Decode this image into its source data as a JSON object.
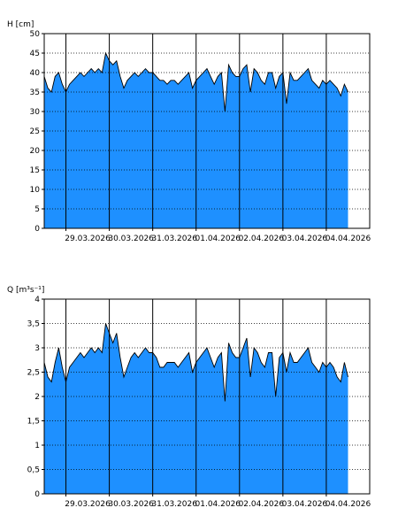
{
  "chart_data": [
    {
      "type": "area",
      "ylabel": "H [cm]",
      "ylim": [
        0,
        50
      ],
      "yticks": [
        0,
        5,
        10,
        15,
        20,
        25,
        30,
        35,
        40,
        45,
        50
      ],
      "xlim": [
        "2026-03-28T12:00",
        "2026-04-05T00:00"
      ],
      "xticks": [
        "2026-03-29",
        "2026-03-30",
        "2026-03-31",
        "2026-04-01",
        "2026-04-02",
        "2026-04-03",
        "2026-04-04"
      ],
      "xtick_labels": [
        "29.03.2026",
        "30.03.2026",
        "31.03.2026",
        "01.04.2026",
        "02.04.2026",
        "03.04.2026",
        "04.04.2026"
      ],
      "grid": true,
      "series_color": "#1e90ff",
      "x": [
        "2026-03-28T12:00",
        "2026-03-28T14:00",
        "2026-03-28T16:00",
        "2026-03-28T18:00",
        "2026-03-28T20:00",
        "2026-03-28T22:00",
        "2026-03-29T00:00",
        "2026-03-29T02:00",
        "2026-03-29T04:00",
        "2026-03-29T06:00",
        "2026-03-29T08:00",
        "2026-03-29T10:00",
        "2026-03-29T12:00",
        "2026-03-29T14:00",
        "2026-03-29T16:00",
        "2026-03-29T18:00",
        "2026-03-29T20:00",
        "2026-03-29T22:00",
        "2026-03-30T00:00",
        "2026-03-30T02:00",
        "2026-03-30T04:00",
        "2026-03-30T06:00",
        "2026-03-30T08:00",
        "2026-03-30T10:00",
        "2026-03-30T12:00",
        "2026-03-30T14:00",
        "2026-03-30T16:00",
        "2026-03-30T18:00",
        "2026-03-30T20:00",
        "2026-03-30T22:00",
        "2026-03-31T00:00",
        "2026-03-31T02:00",
        "2026-03-31T04:00",
        "2026-03-31T06:00",
        "2026-03-31T08:00",
        "2026-03-31T10:00",
        "2026-03-31T12:00",
        "2026-03-31T14:00",
        "2026-03-31T16:00",
        "2026-03-31T18:00",
        "2026-03-31T20:00",
        "2026-03-31T22:00",
        "2026-04-01T00:00",
        "2026-04-01T02:00",
        "2026-04-01T04:00",
        "2026-04-01T06:00",
        "2026-04-01T08:00",
        "2026-04-01T10:00",
        "2026-04-01T12:00",
        "2026-04-01T14:00",
        "2026-04-01T16:00",
        "2026-04-01T18:00",
        "2026-04-01T20:00",
        "2026-04-01T22:00",
        "2026-04-02T00:00",
        "2026-04-02T02:00",
        "2026-04-02T04:00",
        "2026-04-02T06:00",
        "2026-04-02T08:00",
        "2026-04-02T10:00",
        "2026-04-02T12:00",
        "2026-04-02T14:00",
        "2026-04-02T16:00",
        "2026-04-02T18:00",
        "2026-04-02T20:00",
        "2026-04-02T22:00",
        "2026-04-03T00:00",
        "2026-04-03T02:00",
        "2026-04-03T04:00",
        "2026-04-03T06:00",
        "2026-04-03T08:00",
        "2026-04-03T10:00",
        "2026-04-03T12:00",
        "2026-04-03T14:00",
        "2026-04-03T16:00",
        "2026-04-03T18:00",
        "2026-04-03T20:00",
        "2026-04-03T22:00",
        "2026-04-04T00:00",
        "2026-04-04T02:00",
        "2026-04-04T04:00",
        "2026-04-04T06:00",
        "2026-04-04T08:00",
        "2026-04-04T10:00",
        "2026-04-04T12:00"
      ],
      "values": [
        39,
        36,
        35,
        39,
        40,
        37,
        35,
        37,
        38,
        39,
        40,
        39,
        40,
        41,
        40,
        41,
        40,
        45,
        43,
        42,
        43,
        39,
        36,
        38,
        39,
        40,
        39,
        40,
        41,
        40,
        40,
        39,
        38,
        38,
        37,
        38,
        38,
        37,
        38,
        39,
        40,
        36,
        38,
        39,
        40,
        41,
        39,
        37,
        39,
        40,
        30,
        42,
        40,
        39,
        39,
        41,
        42,
        35,
        41,
        40,
        38,
        37,
        40,
        40,
        36,
        39,
        40,
        32,
        40,
        38,
        38,
        39,
        40,
        41,
        38,
        37,
        36,
        38,
        37,
        38,
        37,
        36,
        34,
        37,
        35
      ]
    },
    {
      "type": "area",
      "ylabel": "Q [m³s⁻¹]",
      "ylim": [
        0,
        4
      ],
      "yticks": [
        0,
        0.5,
        1,
        1.5,
        2,
        2.5,
        3,
        3.5,
        4
      ],
      "ytick_labels": [
        "0",
        "0,5",
        "1",
        "1,5",
        "2",
        "2,5",
        "3",
        "3,5",
        "4"
      ],
      "xlim": [
        "2026-03-28T12:00",
        "2026-04-05T00:00"
      ],
      "xticks": [
        "2026-03-29",
        "2026-03-30",
        "2026-03-31",
        "2026-04-01",
        "2026-04-02",
        "2026-04-03",
        "2026-04-04"
      ],
      "xtick_labels": [
        "29.03.2026",
        "30.03.2026",
        "31.03.2026",
        "01.04.2026",
        "02.04.2026",
        "03.04.2026",
        "04.04.2026"
      ],
      "grid": true,
      "series_color": "#1e90ff",
      "x": [
        "2026-03-28T12:00",
        "2026-03-28T14:00",
        "2026-03-28T16:00",
        "2026-03-28T18:00",
        "2026-03-28T20:00",
        "2026-03-28T22:00",
        "2026-03-29T00:00",
        "2026-03-29T02:00",
        "2026-03-29T04:00",
        "2026-03-29T06:00",
        "2026-03-29T08:00",
        "2026-03-29T10:00",
        "2026-03-29T12:00",
        "2026-03-29T14:00",
        "2026-03-29T16:00",
        "2026-03-29T18:00",
        "2026-03-29T20:00",
        "2026-03-29T22:00",
        "2026-03-30T00:00",
        "2026-03-30T02:00",
        "2026-03-30T04:00",
        "2026-03-30T06:00",
        "2026-03-30T08:00",
        "2026-03-30T10:00",
        "2026-03-30T12:00",
        "2026-03-30T14:00",
        "2026-03-30T16:00",
        "2026-03-30T18:00",
        "2026-03-30T20:00",
        "2026-03-30T22:00",
        "2026-03-31T00:00",
        "2026-03-31T02:00",
        "2026-03-31T04:00",
        "2026-03-31T06:00",
        "2026-03-31T08:00",
        "2026-03-31T10:00",
        "2026-03-31T12:00",
        "2026-03-31T14:00",
        "2026-03-31T16:00",
        "2026-03-31T18:00",
        "2026-03-31T20:00",
        "2026-03-31T22:00",
        "2026-04-01T00:00",
        "2026-04-01T02:00",
        "2026-04-01T04:00",
        "2026-04-01T06:00",
        "2026-04-01T08:00",
        "2026-04-01T10:00",
        "2026-04-01T12:00",
        "2026-04-01T14:00",
        "2026-04-01T16:00",
        "2026-04-01T18:00",
        "2026-04-01T20:00",
        "2026-04-01T22:00",
        "2026-04-02T00:00",
        "2026-04-02T02:00",
        "2026-04-02T04:00",
        "2026-04-02T06:00",
        "2026-04-02T08:00",
        "2026-04-02T10:00",
        "2026-04-02T12:00",
        "2026-04-02T14:00",
        "2026-04-02T16:00",
        "2026-04-02T18:00",
        "2026-04-02T20:00",
        "2026-04-02T22:00",
        "2026-04-03T00:00",
        "2026-04-03T02:00",
        "2026-04-03T04:00",
        "2026-04-03T06:00",
        "2026-04-03T08:00",
        "2026-04-03T10:00",
        "2026-04-03T12:00",
        "2026-04-03T14:00",
        "2026-04-03T16:00",
        "2026-04-03T18:00",
        "2026-04-03T20:00",
        "2026-04-03T22:00",
        "2026-04-04T00:00",
        "2026-04-04T02:00",
        "2026-04-04T04:00",
        "2026-04-04T06:00",
        "2026-04-04T08:00",
        "2026-04-04T10:00",
        "2026-04-04T12:00"
      ],
      "values": [
        2.7,
        2.4,
        2.3,
        2.7,
        3.0,
        2.6,
        2.3,
        2.6,
        2.7,
        2.8,
        2.9,
        2.8,
        2.9,
        3.0,
        2.9,
        3.0,
        2.9,
        3.5,
        3.3,
        3.1,
        3.3,
        2.8,
        2.4,
        2.6,
        2.8,
        2.9,
        2.8,
        2.9,
        3.0,
        2.9,
        2.9,
        2.8,
        2.6,
        2.6,
        2.7,
        2.7,
        2.7,
        2.6,
        2.7,
        2.8,
        2.9,
        2.5,
        2.7,
        2.8,
        2.9,
        3.0,
        2.8,
        2.6,
        2.8,
        2.9,
        1.9,
        3.1,
        2.9,
        2.8,
        2.8,
        3.0,
        3.2,
        2.4,
        3.0,
        2.9,
        2.7,
        2.6,
        2.9,
        2.9,
        2.0,
        2.8,
        2.9,
        2.5,
        2.9,
        2.7,
        2.7,
        2.8,
        2.9,
        3.0,
        2.7,
        2.6,
        2.5,
        2.7,
        2.6,
        2.7,
        2.6,
        2.4,
        2.3,
        2.7,
        2.4
      ]
    }
  ]
}
